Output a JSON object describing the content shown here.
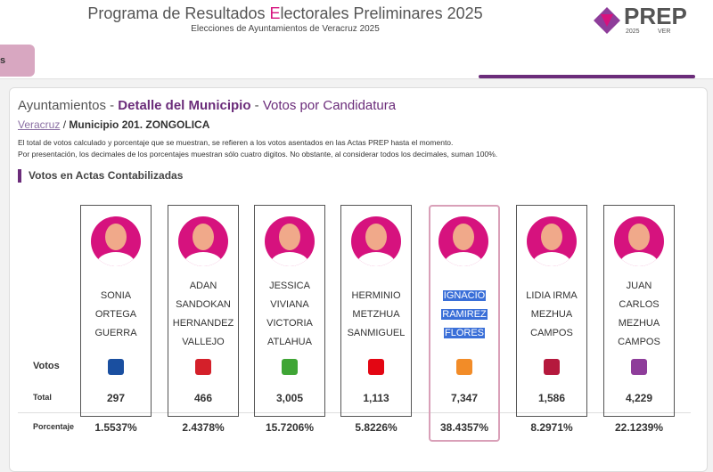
{
  "header": {
    "title_start": "Programa de Resultados ",
    "title_accent": "E",
    "title_end": "lectorales Preliminares 2025",
    "subtitle": "Elecciones de Ayuntamientos de Veracruz 2025",
    "logo": "PREP",
    "logo_year": "2025",
    "logo_state": "VER"
  },
  "nav": {
    "tab": "s"
  },
  "heading": {
    "part1": "Ayuntamientos",
    "sep1": " - ",
    "part2": "Detalle del Municipio",
    "sep2": " - ",
    "part3": "Votos por Candidatura"
  },
  "location": {
    "state": "Veracruz",
    "sep": " / ",
    "municipio": "Municipio 201. ZONGOLICA"
  },
  "notes": [
    "El total de votos calculado y porcentaje que se muestran, se refieren a los votos asentados en las Actas PREP hasta el momento.",
    "Por presentación, los decimales de los porcentajes muestran sólo cuatro digitos. No obstante, al considerar todos los decimales, suman 100%."
  ],
  "section_title": "Votos en Actas Contabilizadas",
  "row_labels": {
    "votos": "Votos",
    "total": "Total",
    "porcentaje": "Porcentaje"
  },
  "candidates": [
    {
      "name_lines": [
        "SONIA",
        "ORTEGA",
        "GUERRA"
      ],
      "party_color": "#1a4fa0",
      "total": "297",
      "percent": "1.5537%"
    },
    {
      "name_lines": [
        "ADAN",
        "SANDOKAN",
        "HERNANDEZ",
        "VALLEJO"
      ],
      "party_color": "#d4202a",
      "total": "466",
      "percent": "2.4378%"
    },
    {
      "name_lines": [
        "JESSICA",
        "VIVIANA",
        "VICTORIA",
        "ATLAHUA"
      ],
      "party_color": "#3fa535",
      "total": "3,005",
      "percent": "15.7206%"
    },
    {
      "name_lines": [
        "HERMINIO",
        "METZHUA",
        "SANMIGUEL"
      ],
      "party_color": "#e30613",
      "total": "1,113",
      "percent": "5.8226%"
    },
    {
      "name_lines": [
        "IGNACIO",
        "RAMIREZ",
        "FLORES"
      ],
      "party_color": "#f28c28",
      "total": "7,347",
      "percent": "38.4357%",
      "highlighted": true
    },
    {
      "name_lines": [
        "LIDIA IRMA",
        "MEZHUA",
        "CAMPOS"
      ],
      "party_color": "#b5193d",
      "total": "1,586",
      "percent": "8.2971%"
    },
    {
      "name_lines": [
        "JUAN",
        "CARLOS",
        "MEZHUA",
        "CAMPOS"
      ],
      "party_color": "#8e3d9a",
      "total": "4,229",
      "percent": "22.1239%"
    }
  ]
}
